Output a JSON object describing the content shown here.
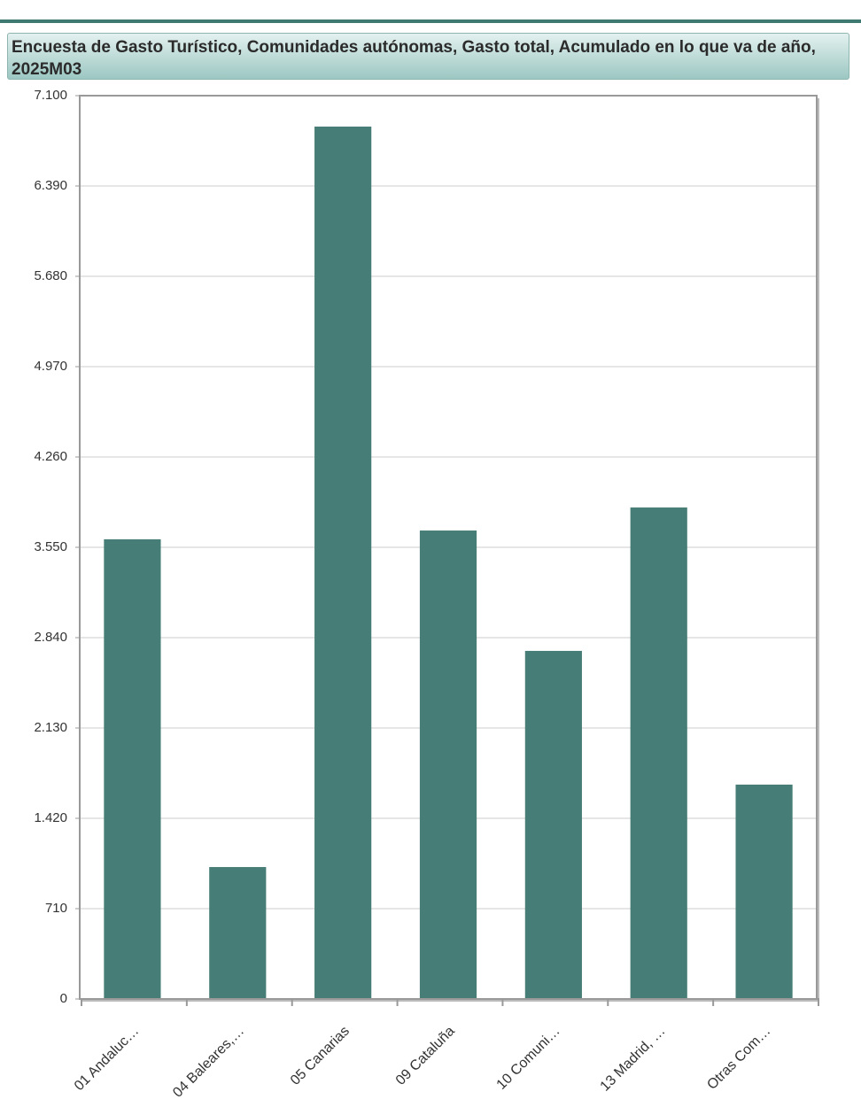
{
  "chart_data": {
    "type": "bar",
    "title": "Encuesta de Gasto Turístico, Comunidades autónomas, Gasto total, Acumulado en lo que va de año, 2025M03",
    "categories": [
      "01 Andaluc…",
      "04 Baleares,…",
      "05 Canarias",
      "09 Cataluña",
      "10 Comuni…",
      "13 Madrid, …",
      "Otras Com…"
    ],
    "values": [
      3613,
      1037,
      6857,
      3682,
      2736,
      3863,
      1685
    ],
    "color": "#467d76",
    "ylim": [
      0,
      7100
    ],
    "yticks": [
      0,
      710,
      {
        "value": 1420,
        "label": "1.420"
      },
      {
        "value": 2130,
        "label": "2.130"
      },
      {
        "value": 2840,
        "label": "2.840"
      },
      {
        "value": 3550,
        "label": "3.550"
      },
      {
        "value": 4260,
        "label": "4.260"
      },
      {
        "value": 4970,
        "label": "4.970"
      },
      {
        "value": 5680,
        "label": "5.680"
      },
      {
        "value": 6390,
        "label": "6.390"
      },
      {
        "value": 7100,
        "label": "7.100"
      }
    ],
    "grid": true
  }
}
